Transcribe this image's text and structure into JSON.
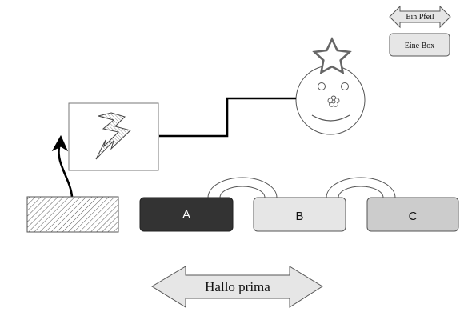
{
  "legend": {
    "arrow_label": "Ein Pfeil",
    "box_label": "Eine Box"
  },
  "chain": {
    "boxes": [
      {
        "label": "A",
        "fill": "#333333",
        "text_color": "#ffffff"
      },
      {
        "label": "B",
        "fill": "#e6e6e6",
        "text_color": "#111111"
      },
      {
        "label": "C",
        "fill": "#cccccc",
        "text_color": "#111111"
      }
    ]
  },
  "banner": {
    "label": "Hallo prima"
  },
  "icons": {
    "lightning": "lightning-icon",
    "star": "star-icon",
    "flower": "flower-icon",
    "hatch": "hatched-box"
  },
  "colors": {
    "stroke": "#555555",
    "light_fill": "#e6e6e6",
    "line": "#000000"
  }
}
